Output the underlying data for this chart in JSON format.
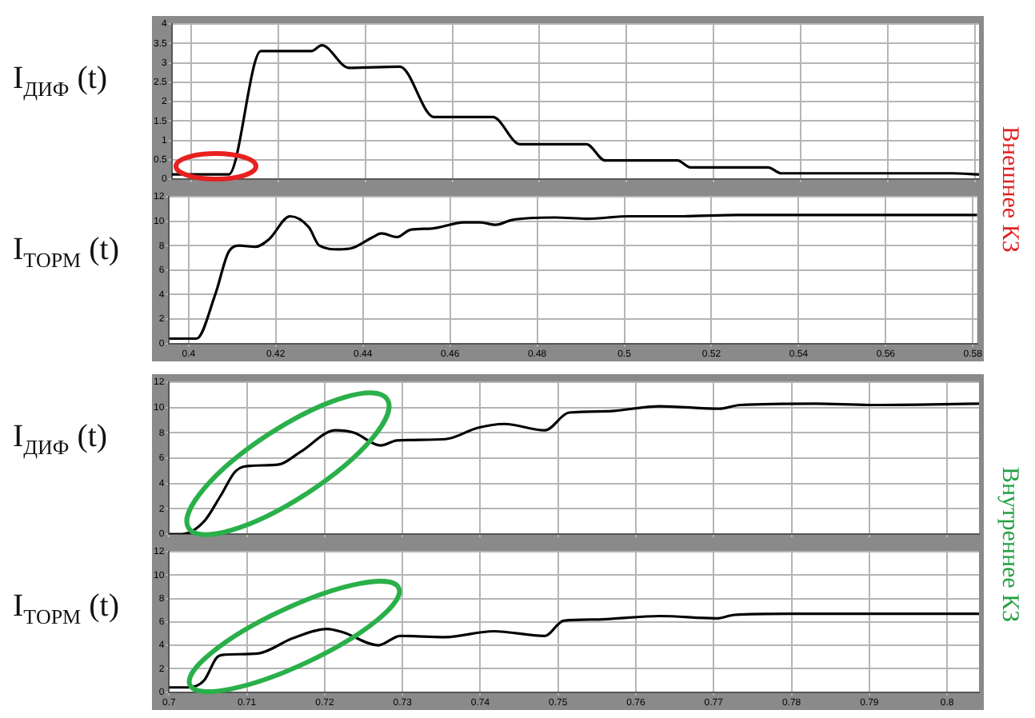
{
  "chart_data": [
    {
      "type": "line",
      "ylabel": "I$_{ДИФ}$ (t)",
      "annotations": [
        "Внешнее КЗ"
      ],
      "grid": true,
      "tick_labels": "y",
      "marker": "none",
      "xlim": [
        0.3955,
        0.581
      ],
      "ylim": [
        0,
        4
      ],
      "xticks": [
        0.4,
        0.42,
        0.44,
        0.46,
        0.48,
        0.5,
        0.52,
        0.54,
        0.56,
        0.58
      ],
      "yticks": [
        0,
        0.5,
        1,
        1.5,
        2,
        2.5,
        3,
        3.5,
        4
      ],
      "series": [
        {
          "color": "#000000",
          "x": [
            0.3955,
            0.4086,
            0.416,
            0.4276,
            0.43,
            0.4362,
            0.4479,
            0.4558,
            0.4693,
            0.4755,
            0.4908,
            0.4951,
            0.5117,
            0.5147,
            0.5325,
            0.5356,
            0.5748,
            0.581
          ],
          "values": [
            0.12,
            0.12,
            3.3,
            3.3,
            3.45,
            2.87,
            2.9,
            1.6,
            1.6,
            0.9,
            0.9,
            0.48,
            0.48,
            0.3,
            0.3,
            0.15,
            0.15,
            0.12
          ]
        }
      ]
    },
    {
      "type": "line",
      "ylabel": "I$_{ТОРМ}$ (t)",
      "grid": true,
      "marker": "none",
      "xlim": [
        0.3955,
        0.581
      ],
      "ylim": [
        0,
        12
      ],
      "xticks": [
        0.4,
        0.42,
        0.44,
        0.46,
        0.48,
        0.5,
        0.52,
        0.54,
        0.56,
        0.58
      ],
      "yticks": [
        0,
        2,
        4,
        6,
        8,
        10,
        12
      ],
      "series": [
        {
          "color": "#000000",
          "x": [
            0.3955,
            0.4018,
            0.4061,
            0.4092,
            0.4117,
            0.4153,
            0.4184,
            0.4233,
            0.4276,
            0.43,
            0.4344,
            0.4375,
            0.4423,
            0.4442,
            0.4479,
            0.4509,
            0.4558,
            0.4632,
            0.4668,
            0.4705,
            0.4742,
            0.484,
            0.4914,
            0.5012,
            0.5135,
            0.5258,
            0.581
          ],
          "values": [
            0.4,
            0.4,
            4,
            7.5,
            8,
            7.9,
            8.5,
            10.4,
            9.5,
            8,
            7.7,
            7.8,
            8.7,
            9,
            8.7,
            9.3,
            9.4,
            9.9,
            9.9,
            9.7,
            10.1,
            10.3,
            10.2,
            10.4,
            10.4,
            10.5,
            10.5
          ]
        }
      ]
    },
    {
      "type": "line",
      "ylabel": "I$_{ДИФ}$ (t)",
      "annotations": [
        "Внутреннее КЗ"
      ],
      "grid": true,
      "tick_labels": "y",
      "marker": "none",
      "xlim": [
        0.7,
        0.8041
      ],
      "ylim": [
        0,
        12
      ],
      "xticks": [
        0.7,
        0.71,
        0.72,
        0.73,
        0.74,
        0.75,
        0.76,
        0.77,
        0.78,
        0.79,
        0.8
      ],
      "yticks": [
        0,
        2,
        4,
        6,
        8,
        10,
        12
      ],
      "series": [
        {
          "color": "#000000",
          "x": [
            0.7,
            0.7017,
            0.7045,
            0.7066,
            0.7086,
            0.7107,
            0.7141,
            0.7169,
            0.7214,
            0.7238,
            0.7272,
            0.7293,
            0.7355,
            0.7397,
            0.7431,
            0.7483,
            0.7514,
            0.7562,
            0.7631,
            0.7707,
            0.7734,
            0.7831,
            0.79,
            0.8041
          ],
          "values": [
            0,
            0,
            1,
            3,
            5,
            5.4,
            5.5,
            6.5,
            8.2,
            8,
            7,
            7.4,
            7.5,
            8.4,
            8.7,
            8.2,
            9.6,
            9.7,
            10.1,
            9.9,
            10.2,
            10.3,
            10.2,
            10.3
          ]
        }
      ]
    },
    {
      "type": "line",
      "ylabel": "I$_{ТОРМ}$ (t)",
      "grid": true,
      "marker": "none",
      "xlim": [
        0.7,
        0.8041
      ],
      "ylim": [
        0,
        12
      ],
      "xticks": [
        0.7,
        0.71,
        0.72,
        0.73,
        0.74,
        0.75,
        0.76,
        0.77,
        0.78,
        0.79,
        0.8
      ],
      "yticks": [
        0,
        2,
        4,
        6,
        8,
        10,
        12
      ],
      "series": [
        {
          "color": "#000000",
          "x": [
            0.7,
            0.7024,
            0.7045,
            0.7062,
            0.7072,
            0.7114,
            0.7159,
            0.7203,
            0.7224,
            0.7269,
            0.7297,
            0.7355,
            0.7417,
            0.7483,
            0.7507,
            0.7548,
            0.7631,
            0.7703,
            0.7727,
            0.7797,
            0.8041
          ],
          "values": [
            0.4,
            0.4,
            1,
            3,
            3.2,
            3.3,
            4.6,
            5.4,
            5.1,
            4,
            4.8,
            4.7,
            5.2,
            4.8,
            6.1,
            6.2,
            6.5,
            6.3,
            6.6,
            6.7,
            6.7
          ]
        }
      ]
    }
  ]
}
